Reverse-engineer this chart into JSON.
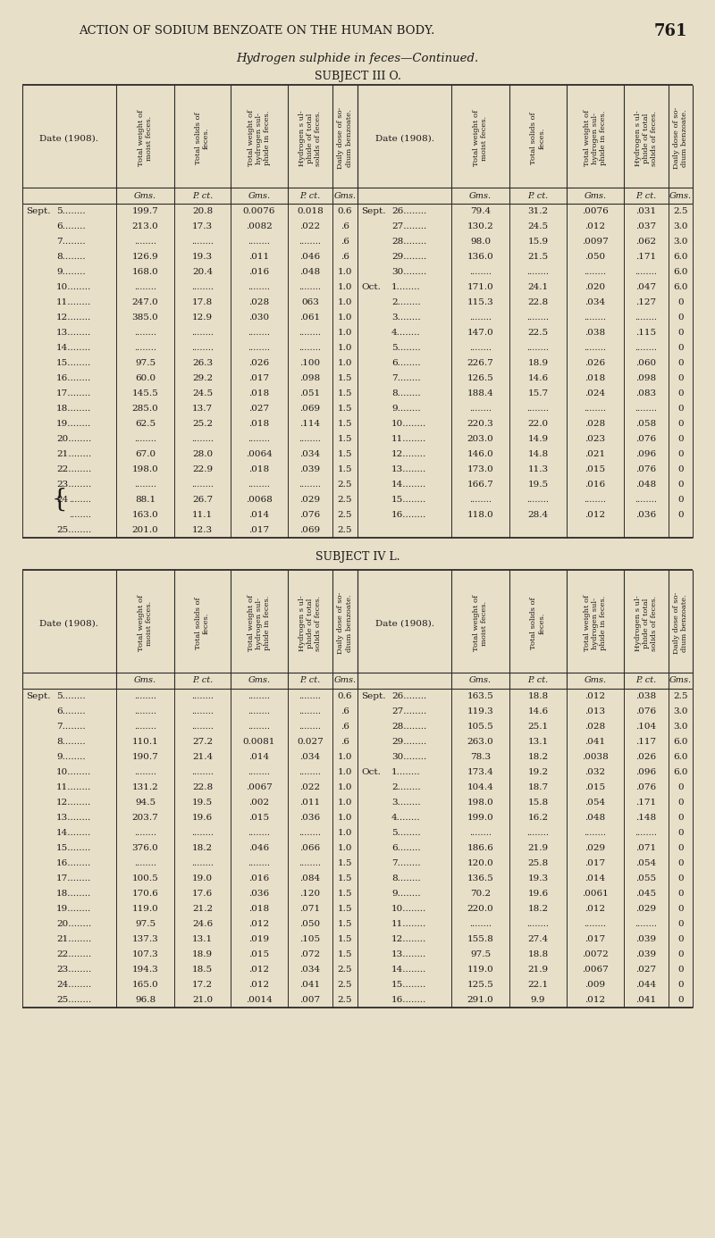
{
  "page_header": "ACTION OF SODIUM BENZOATE ON THE HUMAN BODY.",
  "page_number": "761",
  "subtitle": "Hydrogen sulphide in feces—Continued.",
  "subject3_title": "SUBJECT III O.",
  "subject4_title": "SUBJECT IV L.",
  "col_units": [
    "Gms.",
    "P. ct.",
    "Gms.",
    "P. ct.",
    "Gms."
  ],
  "header_labels": [
    "Total weight of\nmoist feces.",
    "Total solids of\nfeces.",
    "Total weight of\nhydrogen sul-\nphide in feces.",
    "Hydrogen s ul-\nphide of total\nsolids of feces.",
    "Daily dose of so-\ndium benzoate."
  ],
  "subject3_left": [
    [
      "Sept.",
      "5",
      "199.7",
      "20.8",
      "0.0076",
      "0.018",
      "0.6"
    ],
    [
      "",
      "6",
      "213.0",
      "17.3",
      ".0082",
      ".022",
      ".6"
    ],
    [
      "",
      "7",
      "",
      "",
      "",
      "",
      ".6"
    ],
    [
      "",
      "8",
      "126.9",
      "19.3",
      ".011",
      ".046",
      ".6"
    ],
    [
      "",
      "9",
      "168.0",
      "20.4",
      ".016",
      ".048",
      "1.0"
    ],
    [
      "",
      "10",
      "",
      "",
      "",
      "",
      "1.0"
    ],
    [
      "",
      "11",
      "247.0",
      "17.8",
      ".028",
      "063",
      "1.0"
    ],
    [
      "",
      "12",
      "385.0",
      "12.9",
      ".030",
      ".061",
      "1.0"
    ],
    [
      "",
      "13",
      "",
      "",
      "",
      "",
      "1.0"
    ],
    [
      "",
      "14",
      "",
      "",
      "",
      "",
      "1.0"
    ],
    [
      "",
      "15",
      "97.5",
      "26.3",
      ".026",
      ".100",
      "1.0"
    ],
    [
      "",
      "16",
      "60.0",
      "29.2",
      ".017",
      ".098",
      "1.5"
    ],
    [
      "",
      "17",
      "145.5",
      "24.5",
      ".018",
      ".051",
      "1.5"
    ],
    [
      "",
      "18",
      "285.0",
      "13.7",
      ".027",
      ".069",
      "1.5"
    ],
    [
      "",
      "19",
      "62.5",
      "25.2",
      ".018",
      ".114",
      "1.5"
    ],
    [
      "",
      "20",
      "",
      "",
      "",
      "",
      "1.5"
    ],
    [
      "",
      "21",
      "67.0",
      "28.0",
      ".0064",
      ".034",
      "1.5"
    ],
    [
      "",
      "22",
      "198.0",
      "22.9",
      ".018",
      ".039",
      "1.5"
    ],
    [
      "",
      "23",
      "",
      "",
      "",
      "",
      "2.5"
    ],
    [
      "",
      "24{",
      "88.1",
      "26.7",
      ".0068",
      ".029",
      "2.5"
    ],
    [
      "",
      "24 ",
      "163.0",
      "11.1",
      ".014",
      ".076",
      "2.5"
    ],
    [
      "",
      "25",
      "201.0",
      "12.3",
      ".017",
      ".069",
      "2.5"
    ]
  ],
  "subject3_right": [
    [
      "Sept.",
      "26",
      "79.4",
      "31.2",
      ".0076",
      ".031",
      "2.5"
    ],
    [
      "",
      "27",
      "130.2",
      "24.5",
      ".012",
      ".037",
      "3.0"
    ],
    [
      "",
      "28",
      "98.0",
      "15.9",
      ".0097",
      ".062",
      "3.0"
    ],
    [
      "",
      "29",
      "136.0",
      "21.5",
      ".050",
      ".171",
      "6.0"
    ],
    [
      "",
      "30",
      "",
      "",
      "",
      "",
      "6.0"
    ],
    [
      "Oct.",
      "1",
      "171.0",
      "24.1",
      ".020",
      ".047",
      "6.0"
    ],
    [
      "",
      "2",
      "115.3",
      "22.8",
      ".034",
      ".127",
      "0"
    ],
    [
      "",
      "3",
      "",
      "",
      "",
      "",
      "0"
    ],
    [
      "",
      "4",
      "147.0",
      "22.5",
      ".038",
      ".115",
      "0"
    ],
    [
      "",
      "5",
      "",
      "",
      "",
      "",
      "0"
    ],
    [
      "",
      "6",
      "226.7",
      "18.9",
      ".026",
      ".060",
      "0"
    ],
    [
      "",
      "7",
      "126.5",
      "14.6",
      ".018",
      ".098",
      "0"
    ],
    [
      "",
      "8",
      "188.4",
      "15.7",
      ".024",
      ".083",
      "0"
    ],
    [
      "",
      "9",
      "",
      "",
      "",
      "",
      "0"
    ],
    [
      "",
      "10",
      "220.3",
      "22.0",
      ".028",
      ".058",
      "0"
    ],
    [
      "",
      "11",
      "203.0",
      "14.9",
      ".023",
      ".076",
      "0"
    ],
    [
      "",
      "12",
      "146.0",
      "14.8",
      ".021",
      ".096",
      "0"
    ],
    [
      "",
      "13",
      "173.0",
      "11.3",
      ".015",
      ".076",
      "0"
    ],
    [
      "",
      "14",
      "166.7",
      "19.5",
      ".016",
      ".048",
      "0"
    ],
    [
      "",
      "15",
      "",
      "",
      "",
      "",
      "0"
    ],
    [
      "",
      "16",
      "118.0",
      "28.4",
      ".012",
      ".036",
      "0"
    ]
  ],
  "subject4_left": [
    [
      "Sept.",
      "5",
      "",
      "",
      "",
      "",
      "0.6"
    ],
    [
      "",
      "6",
      "",
      "",
      "",
      "",
      ".6"
    ],
    [
      "",
      "7",
      "",
      "",
      "",
      "",
      ".6"
    ],
    [
      "",
      "8",
      "110.1",
      "27.2",
      "0.0081",
      "0.027",
      ".6"
    ],
    [
      "",
      "9",
      "190.7",
      "21.4",
      ".014",
      ".034",
      "1.0"
    ],
    [
      "",
      "10",
      "",
      "",
      "",
      "",
      "1.0"
    ],
    [
      "",
      "11",
      "131.2",
      "22.8",
      ".0067",
      ".022",
      "1.0"
    ],
    [
      "",
      "12",
      "94.5",
      "19.5",
      ".002",
      ".011",
      "1.0"
    ],
    [
      "",
      "13",
      "203.7",
      "19.6",
      ".015",
      ".036",
      "1.0"
    ],
    [
      "",
      "14",
      "",
      "",
      "",
      "",
      "1.0"
    ],
    [
      "",
      "15",
      "376.0",
      "18.2",
      ".046",
      ".066",
      "1.0"
    ],
    [
      "",
      "16",
      "",
      "",
      "",
      "",
      "1.5"
    ],
    [
      "",
      "17",
      "100.5",
      "19.0",
      ".016",
      ".084",
      "1.5"
    ],
    [
      "",
      "18",
      "170.6",
      "17.6",
      ".036",
      ".120",
      "1.5"
    ],
    [
      "",
      "19",
      "119.0",
      "21.2",
      ".018",
      ".071",
      "1.5"
    ],
    [
      "",
      "20",
      "97.5",
      "24.6",
      ".012",
      ".050",
      "1.5"
    ],
    [
      "",
      "21",
      "137.3",
      "13.1",
      ".019",
      ".105",
      "1.5"
    ],
    [
      "",
      "22",
      "107.3",
      "18.9",
      ".015",
      ".072",
      "1.5"
    ],
    [
      "",
      "23",
      "194.3",
      "18.5",
      ".012",
      ".034",
      "2.5"
    ],
    [
      "",
      "24",
      "165.0",
      "17.2",
      ".012",
      ".041",
      "2.5"
    ],
    [
      "",
      "25",
      "96.8",
      "21.0",
      ".0014",
      ".007",
      "2.5"
    ]
  ],
  "subject4_right": [
    [
      "Sept.",
      "26",
      "163.5",
      "18.8",
      ".012",
      ".038",
      "2.5"
    ],
    [
      "",
      "27",
      "119.3",
      "14.6",
      ".013",
      ".076",
      "3.0"
    ],
    [
      "",
      "28",
      "105.5",
      "25.1",
      ".028",
      ".104",
      "3.0"
    ],
    [
      "",
      "29",
      "263.0",
      "13.1",
      ".041",
      ".117",
      "6.0"
    ],
    [
      "",
      "30",
      "78.3",
      "18.2",
      ".0038",
      ".026",
      "6.0"
    ],
    [
      "Oct.",
      "1",
      "173.4",
      "19.2",
      ".032",
      ".096",
      "6.0"
    ],
    [
      "",
      "2",
      "104.4",
      "18.7",
      ".015",
      ".076",
      "0"
    ],
    [
      "",
      "3",
      "198.0",
      "15.8",
      ".054",
      ".171",
      "0"
    ],
    [
      "",
      "4",
      "199.0",
      "16.2",
      ".048",
      ".148",
      "0"
    ],
    [
      "",
      "5",
      "",
      "",
      "",
      "",
      "0"
    ],
    [
      "",
      "6",
      "186.6",
      "21.9",
      ".029",
      ".071",
      "0"
    ],
    [
      "",
      "7",
      "120.0",
      "25.8",
      ".017",
      ".054",
      "0"
    ],
    [
      "",
      "8",
      "136.5",
      "19.3",
      ".014",
      ".055",
      "0"
    ],
    [
      "",
      "9",
      "70.2",
      "19.6",
      ".0061",
      ".045",
      "0"
    ],
    [
      "",
      "10",
      "220.0",
      "18.2",
      ".012",
      ".029",
      "0"
    ],
    [
      "",
      "11",
      "",
      "",
      "",
      "",
      "0"
    ],
    [
      "",
      "12",
      "155.8",
      "27.4",
      ".017",
      ".039",
      "0"
    ],
    [
      "",
      "13",
      "97.5",
      "18.8",
      ".0072",
      ".039",
      "0"
    ],
    [
      "",
      "14",
      "119.0",
      "21.9",
      ".0067",
      ".027",
      "0"
    ],
    [
      "",
      "15",
      "125.5",
      "22.1",
      ".009",
      ".044",
      "0"
    ],
    [
      "",
      "16",
      "291.0",
      "9.9",
      ".012",
      ".041",
      "0"
    ]
  ],
  "bg_color": "#e8dfc8",
  "text_color": "#1a1a1a",
  "line_color": "#2a2a2a"
}
